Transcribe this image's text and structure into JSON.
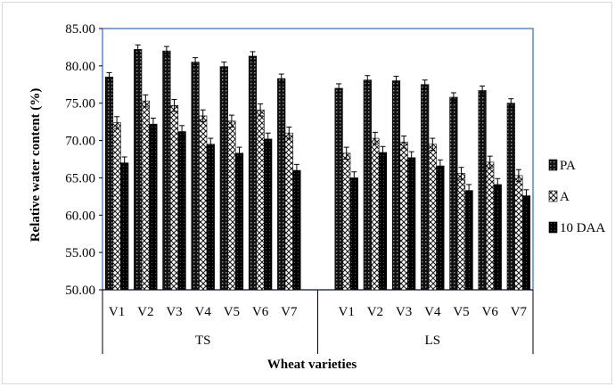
{
  "chart_data": {
    "type": "bar",
    "title": "",
    "xlabel": "Wheat varieties",
    "ylabel": "Relative water content (%)",
    "ylim": [
      50,
      85
    ],
    "yticks": [
      "50.00",
      "55.00",
      "60.00",
      "65.00",
      "70.00",
      "75.00",
      "80.00",
      "85.00"
    ],
    "legend_position": "right",
    "groups": [
      {
        "name": "TS",
        "categories": [
          "V1",
          "V2",
          "V3",
          "V4",
          "V5",
          "V6",
          "V7"
        ],
        "series": [
          {
            "name": "PA",
            "values": [
              78.5,
              82.2,
              82.0,
              80.5,
              79.9,
              81.3,
              78.3
            ],
            "errors": [
              0.6,
              0.6,
              0.6,
              0.6,
              0.6,
              0.6,
              0.6
            ]
          },
          {
            "name": "A",
            "values": [
              72.4,
              75.3,
              74.7,
              73.3,
              72.6,
              74.1,
              71.0
            ],
            "errors": [
              0.8,
              0.8,
              0.8,
              0.8,
              0.8,
              0.8,
              0.8
            ]
          },
          {
            "name": "10 DAA",
            "values": [
              67.0,
              72.2,
              71.2,
              69.5,
              68.3,
              70.2,
              66.0
            ],
            "errors": [
              0.8,
              0.8,
              0.8,
              0.8,
              0.8,
              0.8,
              0.8
            ]
          }
        ]
      },
      {
        "name": "LS",
        "categories": [
          "V1",
          "V2",
          "V3",
          "V4",
          "V5",
          "V6",
          "V7"
        ],
        "series": [
          {
            "name": "PA",
            "values": [
              77.0,
              78.1,
              78.0,
              77.5,
              75.8,
              76.7,
              75.0
            ],
            "errors": [
              0.6,
              0.6,
              0.6,
              0.6,
              0.6,
              0.6,
              0.6
            ]
          },
          {
            "name": "A",
            "values": [
              68.3,
              70.3,
              69.8,
              69.5,
              65.6,
              67.1,
              65.3
            ],
            "errors": [
              0.8,
              0.8,
              0.8,
              0.8,
              0.8,
              0.8,
              0.8
            ]
          },
          {
            "name": "10 DAA",
            "values": [
              65.0,
              68.4,
              67.7,
              66.6,
              63.3,
              64.1,
              62.6
            ],
            "errors": [
              0.8,
              0.8,
              0.8,
              0.8,
              0.8,
              0.8,
              0.8
            ]
          }
        ]
      }
    ],
    "colors": {
      "axis_box": "#4472c4",
      "bar_edge": "#000000",
      "gridline": "#000000"
    }
  }
}
